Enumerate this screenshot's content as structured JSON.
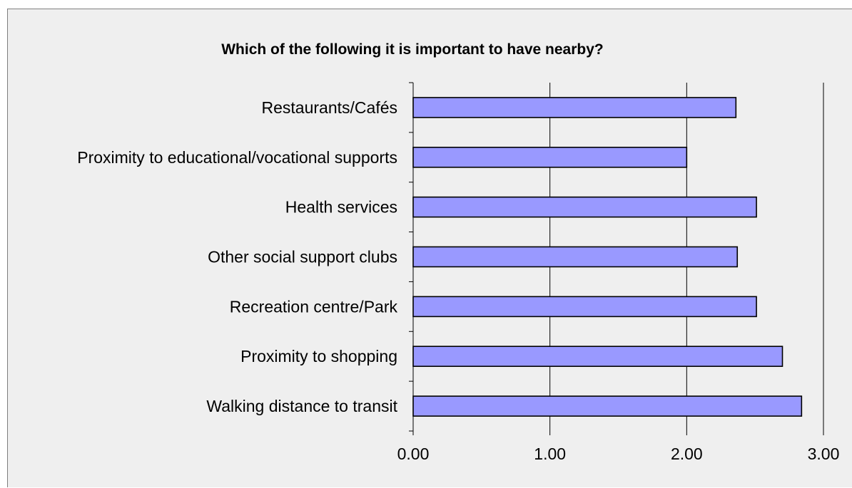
{
  "chart_data": {
    "type": "bar",
    "orientation": "horizontal",
    "title": "Which of the following it is important to have nearby?",
    "categories": [
      "Restaurants/Cafés",
      "Proximity to educational/vocational supports",
      "Health services",
      "Other social support clubs",
      "Recreation centre/Park",
      "Proximity to shopping",
      "Walking distance to transit"
    ],
    "values": [
      2.36,
      2.0,
      2.51,
      2.37,
      2.51,
      2.7,
      2.84
    ],
    "xlim": [
      0,
      3
    ],
    "xticks": [
      "0.00",
      "1.00",
      "2.00",
      "3.00"
    ],
    "grid": true,
    "legend": "none",
    "colors": {
      "bar_fill": "#9999ff",
      "bar_stroke": "#000000",
      "plot_background": "#efefef",
      "gridline": "#000000"
    }
  }
}
